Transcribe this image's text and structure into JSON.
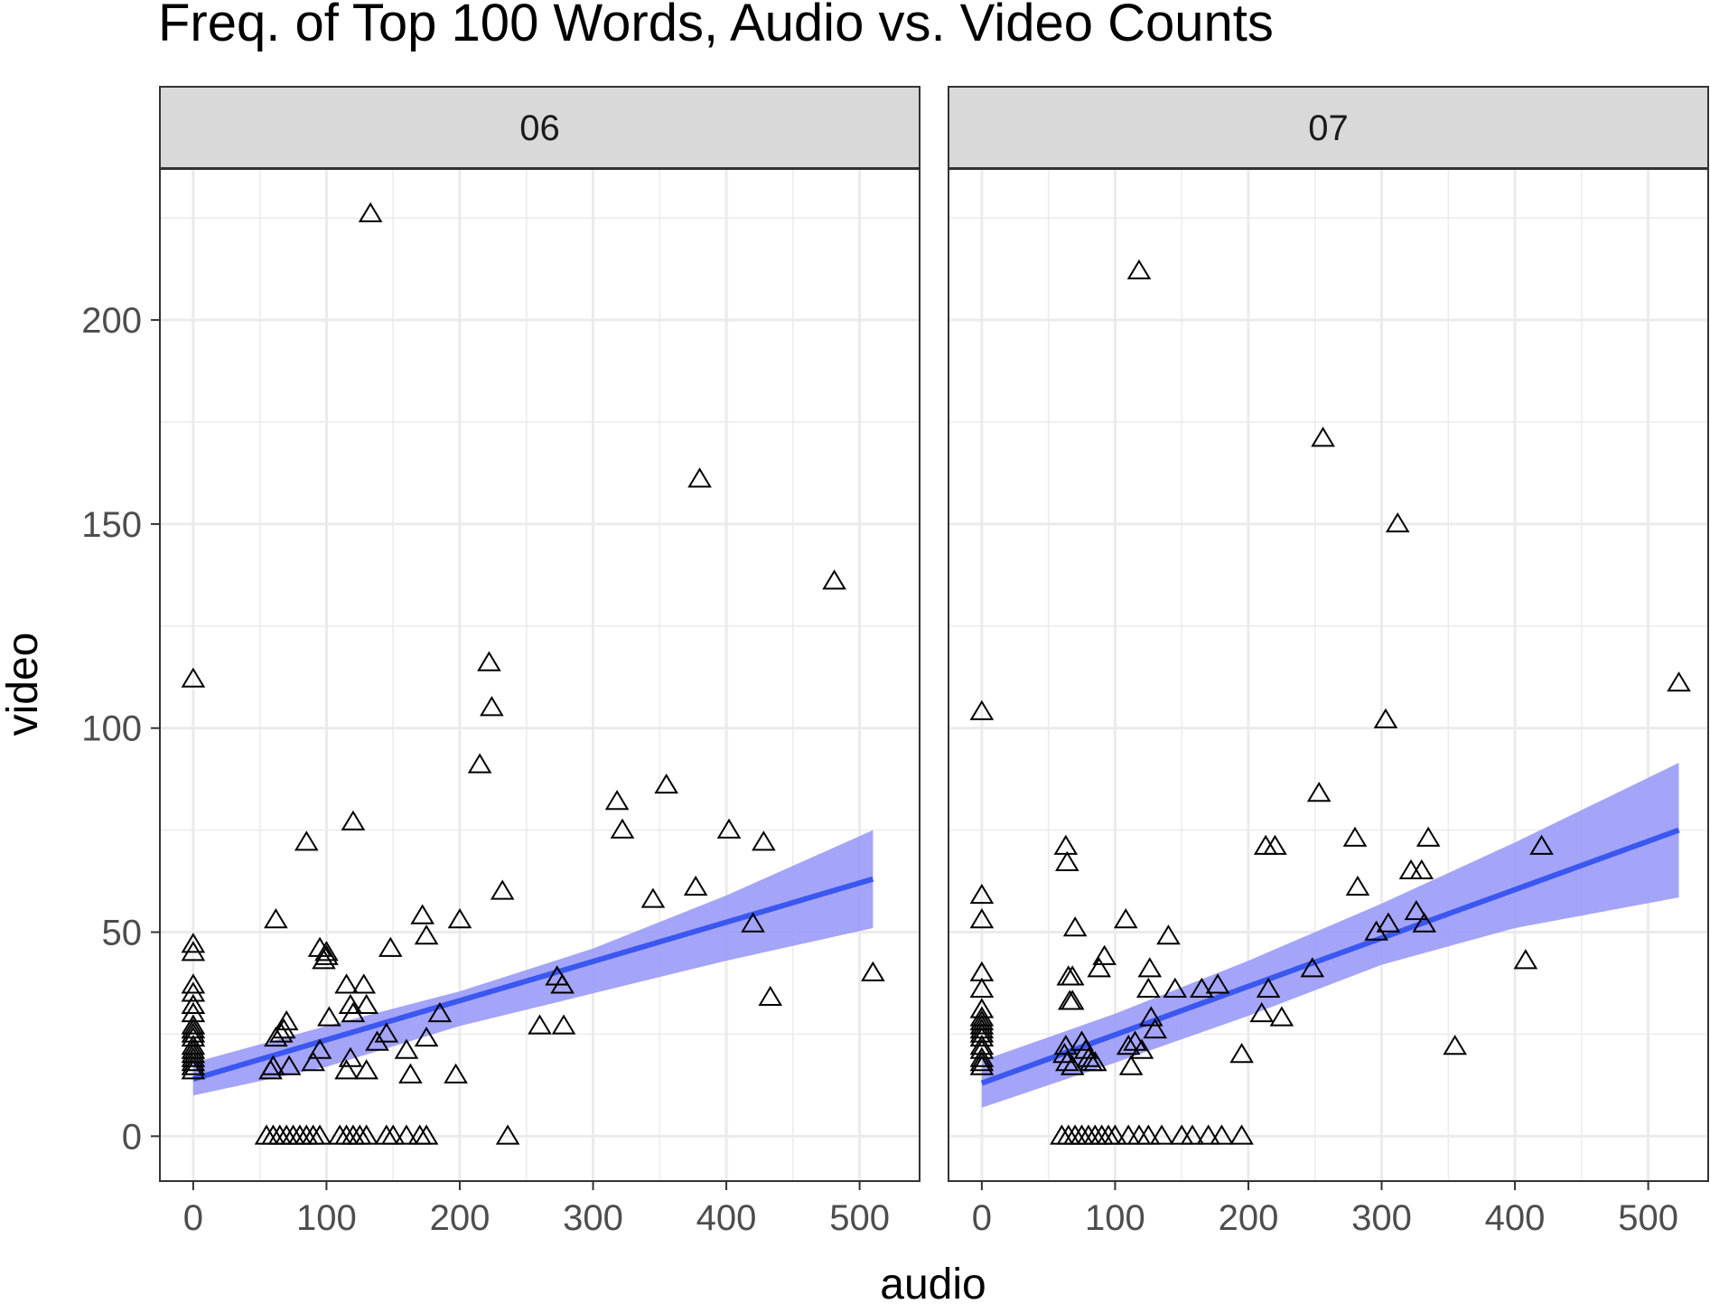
{
  "chart_data": {
    "type": "scatter",
    "title": "Freq. of Top 100 Words, Audio vs. Video Counts",
    "xlabel": "audio",
    "ylabel": "video",
    "xlim": [
      -25,
      545
    ],
    "ylim": [
      -11,
      237
    ],
    "x_ticks": [
      0,
      100,
      200,
      300,
      400,
      500
    ],
    "y_ticks": [
      0,
      50,
      100,
      150,
      200
    ],
    "grid": true,
    "marker": "open-triangle",
    "fit": "linear regression with confidence band",
    "colors": {
      "fit_line": "#3a57f0",
      "band": "#9a9af8",
      "strip_fill": "#d9d9d9",
      "grid": "#ebebeb",
      "points": "#000000"
    },
    "facets": [
      {
        "label": "06",
        "fit_line": [
          [
            0,
            14
          ],
          [
            510,
            63
          ]
        ],
        "band": {
          "x": [
            0,
            100,
            200,
            300,
            400,
            510
          ],
          "upper": [
            18,
            27,
            35.5,
            46,
            59,
            75
          ],
          "lower": [
            10,
            17,
            27,
            35,
            43,
            51
          ]
        },
        "points": [
          [
            0,
            112
          ],
          [
            0,
            47
          ],
          [
            0,
            45
          ],
          [
            0,
            37
          ],
          [
            0,
            35
          ],
          [
            0,
            32
          ],
          [
            0,
            30
          ],
          [
            0,
            27
          ],
          [
            0,
            26
          ],
          [
            0,
            25
          ],
          [
            0,
            24
          ],
          [
            0,
            22
          ],
          [
            0,
            21
          ],
          [
            0,
            20
          ],
          [
            0,
            19
          ],
          [
            0,
            18
          ],
          [
            0,
            17
          ],
          [
            0,
            16
          ],
          [
            62,
            53
          ],
          [
            62,
            24
          ],
          [
            60,
            17
          ],
          [
            58,
            16
          ],
          [
            66,
            25
          ],
          [
            68,
            26
          ],
          [
            70,
            28
          ],
          [
            72,
            17
          ],
          [
            70,
            0
          ],
          [
            85,
            72
          ],
          [
            90,
            18
          ],
          [
            95,
            46
          ],
          [
            95,
            21
          ],
          [
            98,
            43
          ],
          [
            100,
            45
          ],
          [
            100,
            44
          ],
          [
            102,
            29
          ],
          [
            120,
            77
          ],
          [
            115,
            37
          ],
          [
            118,
            32
          ],
          [
            120,
            30
          ],
          [
            115,
            16
          ],
          [
            118,
            19
          ],
          [
            128,
            37
          ],
          [
            130,
            32
          ],
          [
            130,
            16
          ],
          [
            133,
            226
          ],
          [
            138,
            23
          ],
          [
            145,
            25
          ],
          [
            148,
            46
          ],
          [
            160,
            21
          ],
          [
            163,
            15
          ],
          [
            172,
            54
          ],
          [
            175,
            49
          ],
          [
            175,
            24
          ],
          [
            185,
            30
          ],
          [
            197,
            15
          ],
          [
            200,
            53
          ],
          [
            215,
            91
          ],
          [
            222,
            116
          ],
          [
            224,
            105
          ],
          [
            232,
            60
          ],
          [
            236,
            0
          ],
          [
            260,
            27
          ],
          [
            273,
            39
          ],
          [
            277,
            37
          ],
          [
            278,
            27
          ],
          [
            318,
            82
          ],
          [
            322,
            75
          ],
          [
            345,
            58
          ],
          [
            355,
            86
          ],
          [
            377,
            61
          ],
          [
            380,
            161
          ],
          [
            402,
            75
          ],
          [
            420,
            52
          ],
          [
            428,
            72
          ],
          [
            433,
            34
          ],
          [
            481,
            136
          ],
          [
            510,
            40
          ],
          [
            55,
            0
          ],
          [
            60,
            0
          ],
          [
            65,
            0
          ],
          [
            75,
            0
          ],
          [
            80,
            0
          ],
          [
            85,
            0
          ],
          [
            90,
            0
          ],
          [
            95,
            0
          ],
          [
            110,
            0
          ],
          [
            115,
            0
          ],
          [
            120,
            0
          ],
          [
            125,
            0
          ],
          [
            130,
            0
          ],
          [
            145,
            0
          ],
          [
            150,
            0
          ],
          [
            160,
            0
          ],
          [
            170,
            0
          ],
          [
            175,
            0
          ]
        ]
      },
      {
        "label": "07",
        "fit_line": [
          [
            0,
            13
          ],
          [
            523,
            75
          ]
        ],
        "band": {
          "x": [
            0,
            100,
            200,
            300,
            400,
            523
          ],
          "upper": [
            18.5,
            30,
            43,
            57,
            72,
            91.5
          ],
          "lower": [
            7,
            18,
            29.5,
            42,
            51,
            58.5
          ]
        },
        "points": [
          [
            0,
            104
          ],
          [
            0,
            59
          ],
          [
            0,
            53
          ],
          [
            0,
            40
          ],
          [
            0,
            36
          ],
          [
            0,
            31
          ],
          [
            0,
            29
          ],
          [
            0,
            28
          ],
          [
            0,
            27
          ],
          [
            0,
            26
          ],
          [
            0,
            25
          ],
          [
            0,
            24
          ],
          [
            0,
            22
          ],
          [
            0,
            21
          ],
          [
            0,
            19
          ],
          [
            0,
            18
          ],
          [
            0,
            17
          ],
          [
            63,
            71
          ],
          [
            64,
            67
          ],
          [
            65,
            39
          ],
          [
            66,
            33
          ],
          [
            68,
            33
          ],
          [
            68,
            39
          ],
          [
            70,
            51
          ],
          [
            63,
            22
          ],
          [
            62,
            20
          ],
          [
            64,
            18
          ],
          [
            68,
            17
          ],
          [
            75,
            23
          ],
          [
            78,
            21
          ],
          [
            80,
            19
          ],
          [
            82,
            18
          ],
          [
            85,
            18
          ],
          [
            88,
            41
          ],
          [
            92,
            44
          ],
          [
            108,
            53
          ],
          [
            110,
            22
          ],
          [
            112,
            17
          ],
          [
            115,
            23
          ],
          [
            118,
            212
          ],
          [
            120,
            21
          ],
          [
            125,
            36
          ],
          [
            126,
            41
          ],
          [
            127,
            29
          ],
          [
            130,
            26
          ],
          [
            140,
            49
          ],
          [
            145,
            36
          ],
          [
            165,
            36
          ],
          [
            177,
            37
          ],
          [
            195,
            20
          ],
          [
            210,
            30
          ],
          [
            213,
            71
          ],
          [
            215,
            36
          ],
          [
            220,
            71
          ],
          [
            225,
            29
          ],
          [
            248,
            41
          ],
          [
            253,
            84
          ],
          [
            256,
            171
          ],
          [
            280,
            73
          ],
          [
            282,
            61
          ],
          [
            296,
            50
          ],
          [
            303,
            102
          ],
          [
            305,
            52
          ],
          [
            312,
            150
          ],
          [
            322,
            65
          ],
          [
            326,
            55
          ],
          [
            330,
            65
          ],
          [
            332,
            52
          ],
          [
            335,
            73
          ],
          [
            355,
            22
          ],
          [
            408,
            43
          ],
          [
            420,
            71
          ],
          [
            523,
            111
          ],
          [
            60,
            0
          ],
          [
            65,
            0
          ],
          [
            70,
            0
          ],
          [
            75,
            0
          ],
          [
            80,
            0
          ],
          [
            85,
            0
          ],
          [
            90,
            0
          ],
          [
            95,
            0
          ],
          [
            100,
            0
          ],
          [
            110,
            0
          ],
          [
            118,
            0
          ],
          [
            125,
            0
          ],
          [
            135,
            0
          ],
          [
            150,
            0
          ],
          [
            158,
            0
          ],
          [
            170,
            0
          ],
          [
            180,
            0
          ],
          [
            195,
            0
          ]
        ]
      }
    ]
  }
}
